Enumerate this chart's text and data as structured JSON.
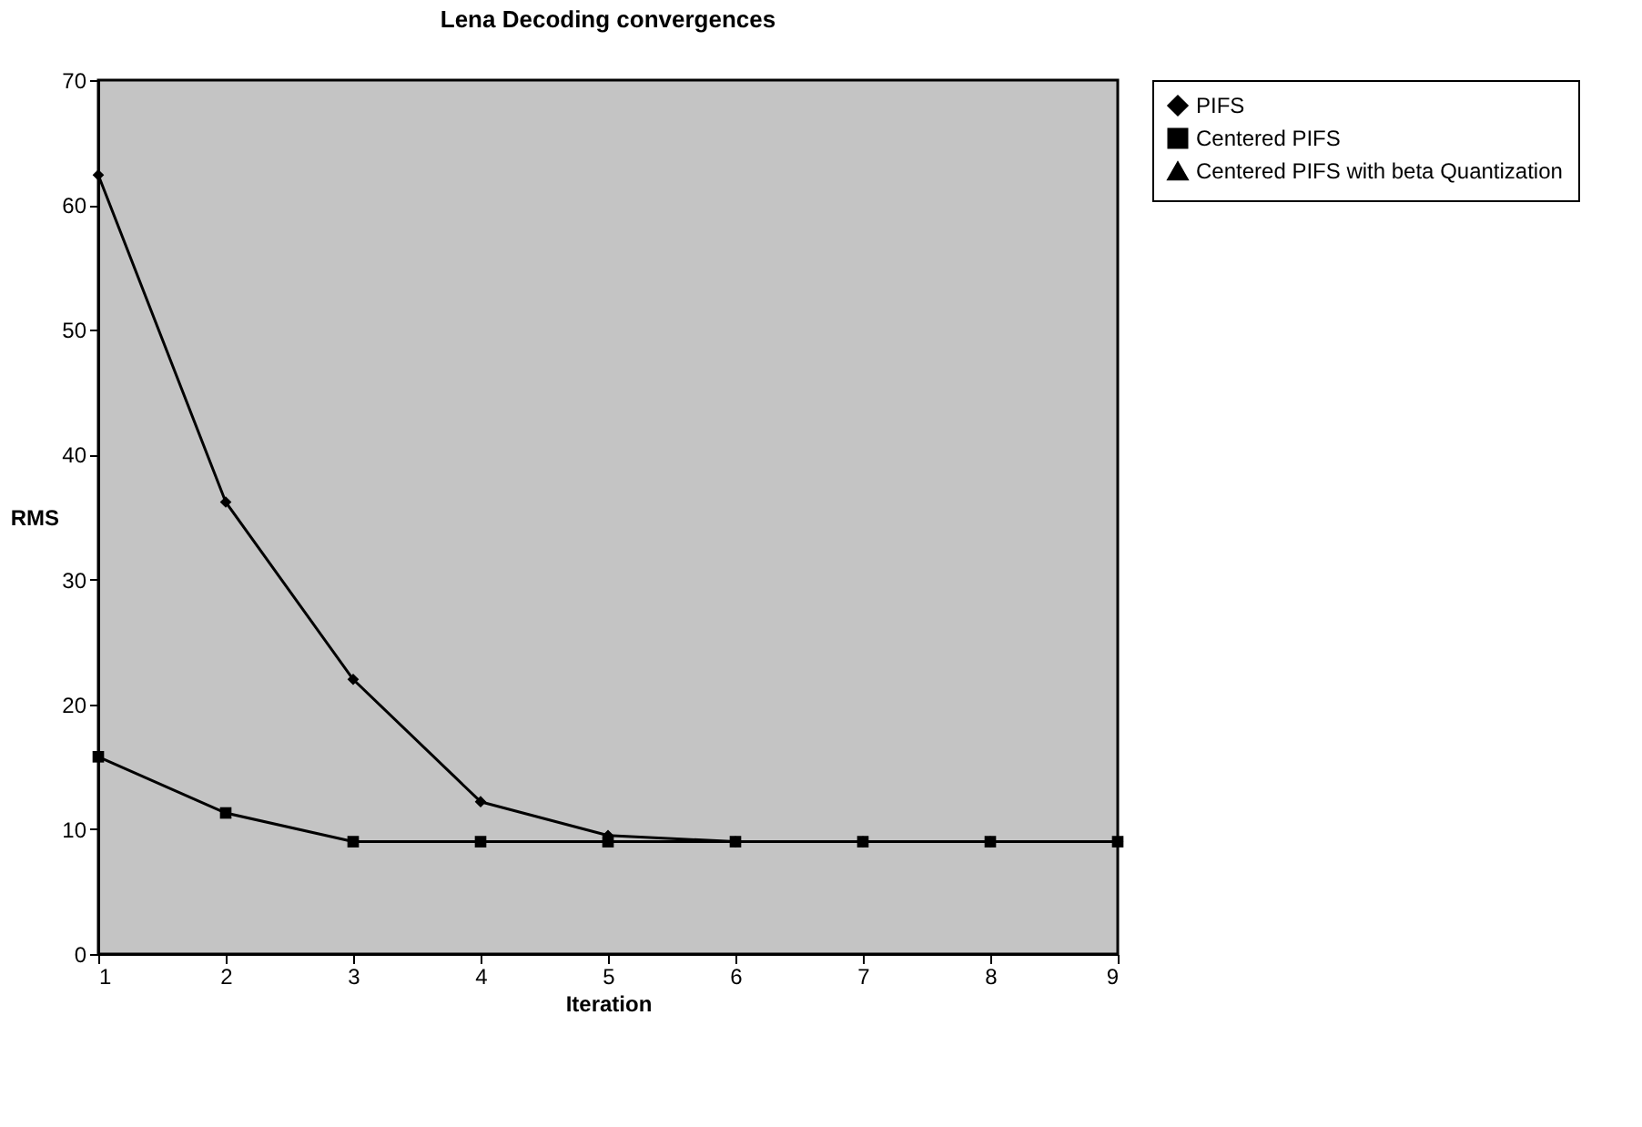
{
  "chart_data": {
    "type": "line",
    "title": "Lena Decoding convergences",
    "xlabel": "Iteration",
    "ylabel": "RMS",
    "x": [
      1,
      2,
      3,
      4,
      5,
      6,
      7,
      8,
      9
    ],
    "series": [
      {
        "name": "PIFS",
        "color": "#000000",
        "marker": "diamond",
        "values": [
          62.4,
          36.2,
          22.0,
          12.2,
          9.5,
          9.0,
          9.0,
          9.0,
          9.0
        ]
      },
      {
        "name": "Centered PIFS",
        "color": "#000000",
        "marker": "square",
        "values": [
          15.8,
          11.3,
          9.0,
          9.0,
          9.0,
          9.0,
          9.0,
          9.0,
          9.0
        ]
      },
      {
        "name": "Centered PIFS with beta Quantization",
        "color": "#000000",
        "marker": "triangle",
        "values": [
          null,
          null,
          null,
          null,
          null,
          null,
          null,
          null,
          null
        ]
      }
    ],
    "xlim": [
      1,
      9
    ],
    "xticks": [
      1,
      2,
      3,
      4,
      5,
      6,
      7,
      8,
      9
    ],
    "ylim": [
      0,
      70
    ],
    "yticks": [
      0,
      10,
      20,
      30,
      40,
      50,
      60,
      70
    ],
    "grid": false,
    "legend": "right",
    "line_style": "solid"
  }
}
